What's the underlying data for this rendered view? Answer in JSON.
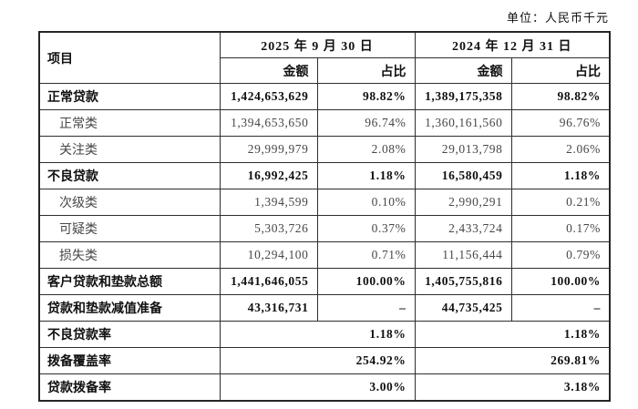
{
  "unit_note": "单位：人民币千元",
  "table": {
    "header": {
      "item": "项目",
      "period1": "2025 年 9 月 30 日",
      "period2": "2024 年 12 月 31 日",
      "amount": "金额",
      "ratio": "占比"
    },
    "rows": [
      {
        "label": "正常贷款",
        "bold": true,
        "indent": false,
        "merged": false,
        "a1": "1,424,653,629",
        "p1": "98.82%",
        "a2": "1,389,175,358",
        "p2": "98.82%"
      },
      {
        "label": "正常类",
        "bold": false,
        "indent": true,
        "merged": false,
        "a1": "1,394,653,650",
        "p1": "96.74%",
        "a2": "1,360,161,560",
        "p2": "96.76%"
      },
      {
        "label": "关注类",
        "bold": false,
        "indent": true,
        "merged": false,
        "a1": "29,999,979",
        "p1": "2.08%",
        "a2": "29,013,798",
        "p2": "2.06%"
      },
      {
        "label": "不良贷款",
        "bold": true,
        "indent": false,
        "merged": false,
        "a1": "16,992,425",
        "p1": "1.18%",
        "a2": "16,580,459",
        "p2": "1.18%"
      },
      {
        "label": "次级类",
        "bold": false,
        "indent": true,
        "merged": false,
        "a1": "1,394,599",
        "p1": "0.10%",
        "a2": "2,990,291",
        "p2": "0.21%"
      },
      {
        "label": "可疑类",
        "bold": false,
        "indent": true,
        "merged": false,
        "a1": "5,303,726",
        "p1": "0.37%",
        "a2": "2,433,724",
        "p2": "0.17%"
      },
      {
        "label": "损失类",
        "bold": false,
        "indent": true,
        "merged": false,
        "a1": "10,294,100",
        "p1": "0.71%",
        "a2": "11,156,444",
        "p2": "0.79%"
      },
      {
        "label": "客户贷款和垫款总额",
        "bold": true,
        "indent": false,
        "merged": false,
        "a1": "1,441,646,055",
        "p1": "100.00%",
        "a2": "1,405,755,816",
        "p2": "100.00%"
      },
      {
        "label": "贷款和垫款减值准备",
        "bold": true,
        "indent": false,
        "merged": false,
        "a1": "43,316,731",
        "p1": "–",
        "a2": "44,735,425",
        "p2": "–"
      },
      {
        "label": "不良贷款率",
        "bold": true,
        "indent": false,
        "merged": true,
        "v1": "1.18%",
        "v2": "1.18%"
      },
      {
        "label": "拨备覆盖率",
        "bold": true,
        "indent": false,
        "merged": true,
        "v1": "254.92%",
        "v2": "269.81%"
      },
      {
        "label": "贷款拨备率",
        "bold": true,
        "indent": false,
        "merged": true,
        "v1": "3.00%",
        "v2": "3.18%"
      }
    ]
  }
}
